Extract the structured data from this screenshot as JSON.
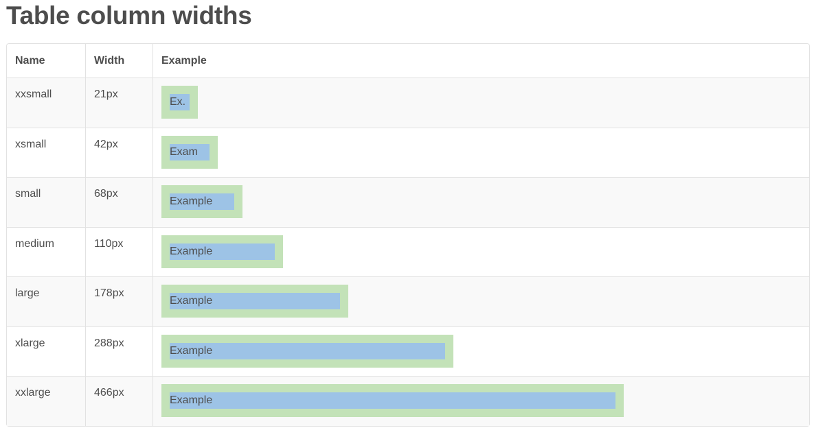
{
  "title": "Table column widths",
  "table": {
    "headers": [
      "Name",
      "Width",
      "Example"
    ],
    "rows": [
      [
        "xxsmall",
        "21px",
        "Ex."
      ],
      [
        "xsmall",
        "42px",
        "Exam"
      ],
      [
        "small",
        "68px",
        "Example"
      ],
      [
        "medium",
        "110px",
        "Example"
      ],
      [
        "large",
        "178px",
        "Example"
      ],
      [
        "xlarge",
        "288px",
        "Example"
      ],
      [
        "xxlarge",
        "466px",
        "Example"
      ]
    ]
  }
}
